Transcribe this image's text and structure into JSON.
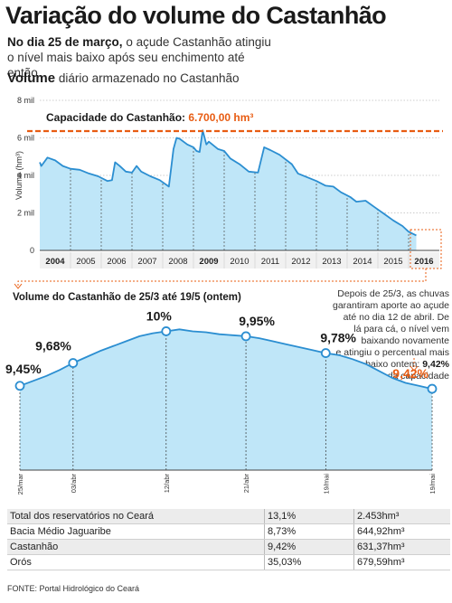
{
  "header": {
    "title": "Variação do volume do Castanhão",
    "subtitle_bold": "No dia 25 de março,",
    "subtitle_rest": "o açude Castanhão atingiu o nível mais baixo após seu enchimento até então"
  },
  "chart_data": [
    {
      "type": "area",
      "label_bold": "Volume",
      "label_rest": "diário armazenado no Castanhão",
      "ylabel": "Volume (hm³)",
      "yticks": [
        "0",
        "2 mil",
        "4 mil",
        "6 mil",
        "8 mil"
      ],
      "ylim": [
        0,
        8000
      ],
      "x_ticks": [
        "2004",
        "2005",
        "2006",
        "2007",
        "2008",
        "2009",
        "2010",
        "2011",
        "2012",
        "2013",
        "2014",
        "2015",
        "2016"
      ],
      "x_ticks_bold": [
        "2004",
        "2009",
        "2016"
      ],
      "capacity_label": "Capacidade do Castanhão:",
      "capacity_value_text": "6.700,00 hm³",
      "capacity": 6700,
      "x": [
        2004.0,
        2004.05,
        2004.25,
        2004.5,
        2004.75,
        2005.0,
        2005.3,
        2005.6,
        2005.9,
        2006.2,
        2006.35,
        2006.45,
        2006.6,
        2006.8,
        2007.0,
        2007.15,
        2007.3,
        2007.6,
        2007.9,
        2008.2,
        2008.35,
        2008.45,
        2008.55,
        2008.8,
        2009.0,
        2009.1,
        2009.2,
        2009.3,
        2009.42,
        2009.5,
        2009.8,
        2010.0,
        2010.2,
        2010.5,
        2010.8,
        2011.1,
        2011.3,
        2011.5,
        2011.8,
        2012.2,
        2012.4,
        2012.7,
        2013.0,
        2013.3,
        2013.55,
        2013.8,
        2014.1,
        2014.3,
        2014.6,
        2014.9,
        2015.2,
        2015.5,
        2015.8,
        2016.0,
        2016.25
      ],
      "y": [
        4700,
        4500,
        4950,
        4800,
        4500,
        4350,
        4300,
        4100,
        3950,
        3700,
        3750,
        4700,
        4500,
        4200,
        4150,
        4500,
        4200,
        3950,
        3750,
        3400,
        5400,
        6000,
        5950,
        5650,
        5500,
        5300,
        5250,
        6400,
        5650,
        5800,
        5400,
        5300,
        4900,
        4600,
        4200,
        4150,
        5500,
        5350,
        5100,
        4600,
        4100,
        3900,
        3700,
        3450,
        3400,
        3100,
        2850,
        2600,
        2650,
        2300,
        1950,
        1600,
        1300,
        1000,
        800
      ]
    },
    {
      "type": "area",
      "title": "Volume do Castanhão de 25/3 até 19/5 (ontem)",
      "unit": "%",
      "x_ticks": [
        "25/mar",
        "03/abr",
        "12/abr",
        "21/abr",
        "19/mai",
        "19/mai"
      ],
      "points": [
        {
          "label": "9,45%",
          "value": 9.45
        },
        {
          "label": "9,68%",
          "value": 9.68
        },
        {
          "label": "10%",
          "value": 10.0
        },
        {
          "label": "9,95%",
          "value": 9.95
        },
        {
          "label": "9,78%",
          "value": 9.78
        },
        {
          "label": "9,42%",
          "value": 9.42
        }
      ],
      "y": [
        9.45,
        9.5,
        9.55,
        9.61,
        9.68,
        9.74,
        9.8,
        9.85,
        9.9,
        9.95,
        9.98,
        10.0,
        10.02,
        10.0,
        9.99,
        9.97,
        9.96,
        9.95,
        9.93,
        9.9,
        9.87,
        9.84,
        9.81,
        9.78,
        9.76,
        9.72,
        9.67,
        9.6,
        9.53,
        9.48,
        9.45,
        9.42
      ],
      "note_lines": [
        "Depois de 25/3, as chuvas",
        "garantiram aporte ao açude",
        "até no dia 12 de abril. De",
        "lá para cá, o nível vem",
        "baixando novamente",
        "e atingiu o percentual mais",
        "baixo ontem:",
        "9,42%",
        "da capacidade"
      ]
    }
  ],
  "colors": {
    "fill": "#bfe6f8",
    "line": "#2b8ed1",
    "capacity": "#e85c12",
    "highlight": "#e85c12"
  },
  "table": {
    "rows": [
      [
        "Total dos reservatórios no Ceará",
        "13,1%",
        "2.453hm³"
      ],
      [
        "Bacia Médio Jaguaribe",
        "8,73%",
        "644,92hm³"
      ],
      [
        "Castanhão",
        "9,42%",
        "631,37hm³"
      ],
      [
        "Orós",
        "35,03%",
        "679,59hm³"
      ]
    ]
  },
  "source": "FONTE: Portal Hidrológico do Ceará"
}
